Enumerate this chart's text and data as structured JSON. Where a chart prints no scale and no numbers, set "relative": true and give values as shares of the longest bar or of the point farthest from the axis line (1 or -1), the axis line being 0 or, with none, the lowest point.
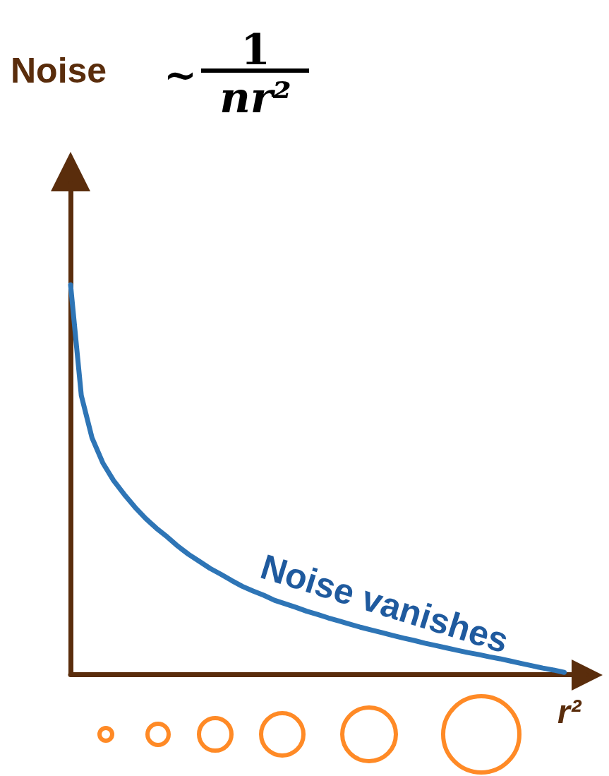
{
  "chart_data": {
    "type": "line",
    "relative": true,
    "xlabel": "r²",
    "color": "#2e75b6",
    "grid": false,
    "marker": "none",
    "line_style": "solid",
    "annotations": [
      "Noise",
      "~",
      "1",
      "nr²",
      "Noise vanishes"
    ],
    "categories": [
      null,
      null,
      null,
      null,
      null,
      null,
      null,
      null,
      null,
      null,
      null,
      null,
      null,
      null,
      null,
      null,
      null,
      null,
      null,
      null,
      null,
      null,
      null,
      null,
      null,
      null,
      null,
      null,
      null,
      null,
      null,
      null,
      null,
      null,
      null,
      null,
      null,
      null,
      null,
      null,
      null,
      null,
      null,
      null,
      null,
      null,
      null,
      null,
      null
    ],
    "values": [
      1.0,
      0.716,
      0.607,
      0.543,
      0.498,
      0.462,
      0.429,
      0.4,
      0.375,
      0.353,
      0.329,
      0.308,
      0.29,
      0.272,
      0.257,
      0.241,
      0.226,
      0.214,
      0.203,
      0.19,
      0.181,
      0.172,
      0.162,
      0.154,
      0.145,
      0.137,
      0.129,
      0.121,
      0.114,
      0.107,
      0.1,
      0.093,
      0.087,
      0.08,
      0.074,
      0.068,
      0.062,
      0.056,
      0.051,
      0.045,
      0.04,
      0.034,
      0.028,
      0.022,
      0.016,
      0.011,
      0.005,
      null,
      null
    ]
  }
}
